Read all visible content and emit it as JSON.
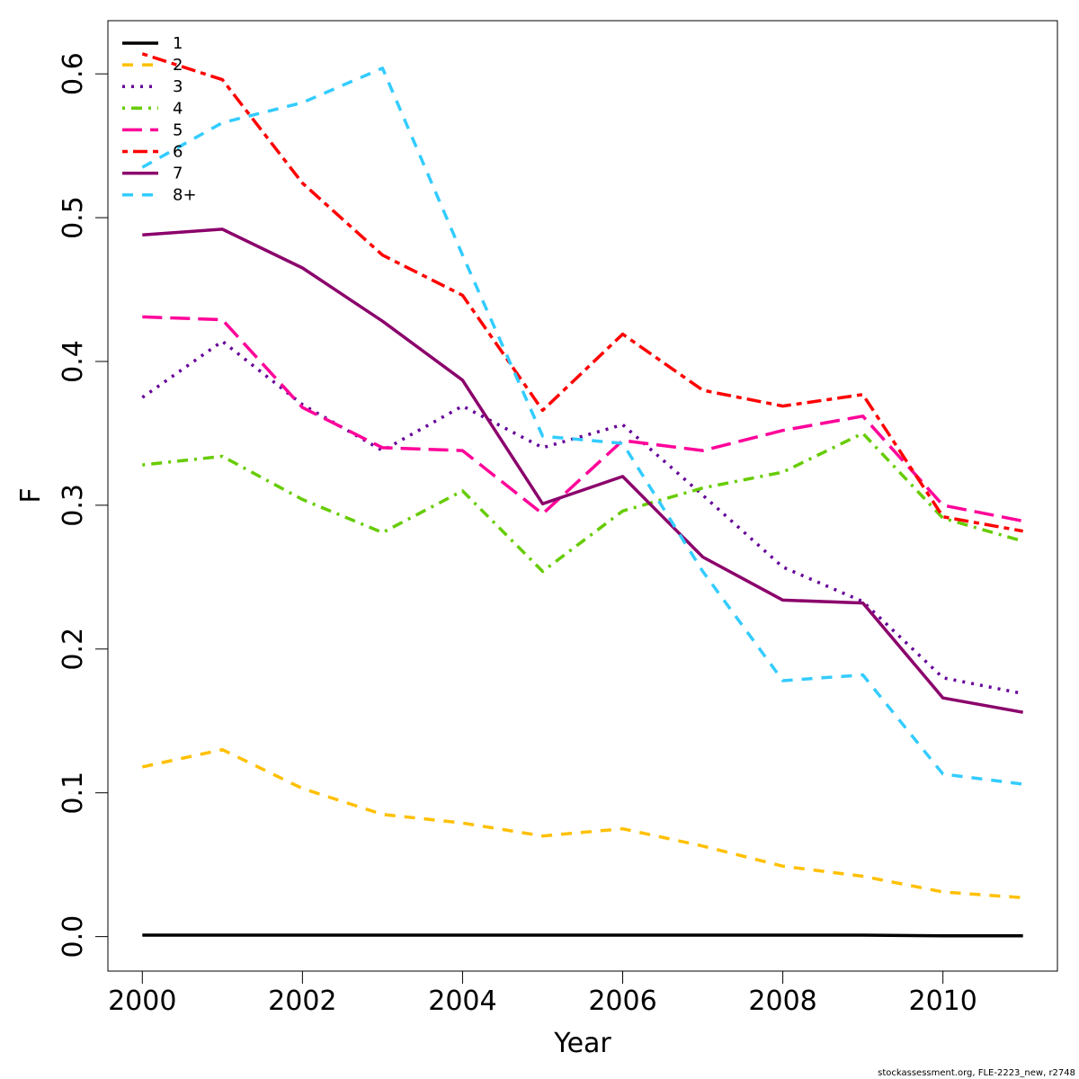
{
  "chart_data": {
    "type": "line",
    "xlabel": "Year",
    "ylabel": "F",
    "xlim": [
      1999.57,
      2011.43
    ],
    "ylim": [
      -0.024,
      0.637
    ],
    "x_ticks": [
      2000,
      2002,
      2004,
      2006,
      2008,
      2010
    ],
    "y_ticks": [
      0.0,
      0.1,
      0.2,
      0.3,
      0.4,
      0.5,
      0.6
    ],
    "y_tick_labels": [
      "0.0",
      "0.1",
      "0.2",
      "0.3",
      "0.4",
      "0.5",
      "0.6"
    ],
    "legend_position": "top-left",
    "grid": false,
    "x": [
      2000,
      2001,
      2002,
      2003,
      2004,
      2005,
      2006,
      2007,
      2008,
      2009,
      2010,
      2011
    ],
    "series": [
      {
        "name": "1",
        "color": "#000000",
        "dash": "solid",
        "values": [
          0.001,
          0.001,
          0.001,
          0.001,
          0.001,
          0.001,
          0.001,
          0.001,
          0.001,
          0.001,
          0.0005,
          0.0005
        ]
      },
      {
        "name": "2",
        "color": "#FFC000",
        "dash": "dashed",
        "values": [
          0.118,
          0.13,
          0.103,
          0.085,
          0.079,
          0.07,
          0.075,
          0.063,
          0.049,
          0.042,
          0.031,
          0.027
        ]
      },
      {
        "name": "3",
        "color": "#660099",
        "dash": "dotted",
        "values": [
          0.375,
          0.414,
          0.37,
          0.338,
          0.369,
          0.34,
          0.356,
          0.307,
          0.257,
          0.233,
          0.18,
          0.169
        ]
      },
      {
        "name": "4",
        "color": "#66CC00",
        "dash": "dotdash",
        "values": [
          0.328,
          0.334,
          0.304,
          0.281,
          0.31,
          0.254,
          0.296,
          0.312,
          0.323,
          0.35,
          0.291,
          0.275
        ]
      },
      {
        "name": "5",
        "color": "#FF0099",
        "dash": "longdash",
        "values": [
          0.431,
          0.429,
          0.368,
          0.34,
          0.338,
          0.294,
          0.345,
          0.338,
          0.352,
          0.362,
          0.3,
          0.289
        ]
      },
      {
        "name": "6",
        "color": "#FF0000",
        "dash": "twodash",
        "values": [
          0.614,
          0.596,
          0.524,
          0.474,
          0.446,
          0.366,
          0.419,
          0.38,
          0.369,
          0.377,
          0.292,
          0.282
        ]
      },
      {
        "name": "7",
        "color": "#8B006B",
        "dash": "solid",
        "values": [
          0.488,
          0.492,
          0.465,
          0.428,
          0.387,
          0.301,
          0.32,
          0.264,
          0.234,
          0.232,
          0.166,
          0.156
        ]
      },
      {
        "name": "8+",
        "color": "#33CCFF",
        "dash": "dashed",
        "values": [
          0.535,
          0.566,
          0.58,
          0.604,
          0.474,
          0.348,
          0.343,
          0.254,
          0.178,
          0.182,
          0.113,
          0.106
        ]
      }
    ]
  },
  "footer": "stockassessment.org, FLE-2223_new, r2748"
}
